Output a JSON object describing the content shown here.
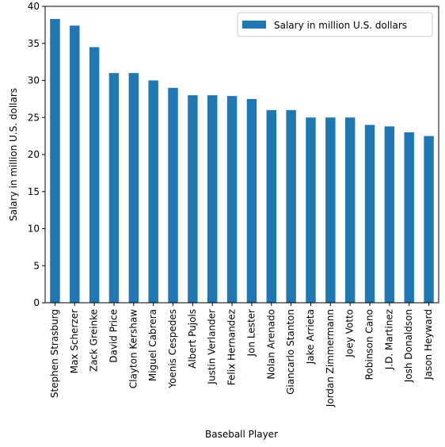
{
  "chart_data": {
    "type": "bar",
    "title": "",
    "xlabel": "Baseball Player",
    "ylabel": "Salary in million U.S. dollars",
    "categories": [
      "Stephen Strasburg",
      "Max Scherzer",
      "Zack Greinke",
      "David Price",
      "Clayton Kershaw",
      "Miguel Cabrera",
      "Yoenis Cespedes",
      "Albert Pujols",
      "Justin Verlander",
      "Felix Hernandez",
      "Jon Lester",
      "Nolan Arenado",
      "Giancarlo Stanton",
      "Jake Arrieta",
      "Jordan Zimmermann",
      "Joey Votto",
      "Robinson Cano",
      "J.D. Martinez",
      "Josh Donaldson",
      "Jason Heyward"
    ],
    "series": [
      {
        "name": "Salary in million U.S. dollars",
        "color": "#1f77b4",
        "values": [
          38.3,
          37.4,
          34.5,
          31.0,
          31.0,
          30.0,
          29.0,
          28.0,
          28.0,
          27.9,
          27.5,
          26.0,
          26.0,
          25.0,
          25.0,
          25.0,
          24.0,
          23.8,
          23.0,
          22.5
        ]
      }
    ],
    "ylim": [
      0,
      40
    ],
    "yticks": [
      "0",
      "5",
      "10",
      "15",
      "20",
      "25",
      "30",
      "35",
      "40"
    ],
    "grid": false,
    "legend_position": "top-right"
  }
}
